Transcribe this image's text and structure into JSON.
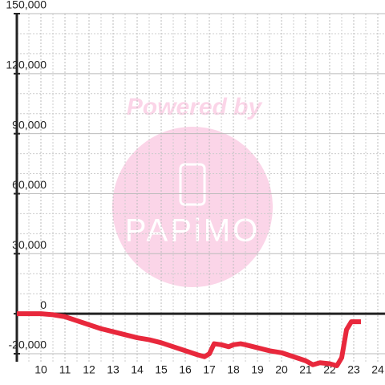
{
  "chart_data": {
    "type": "line",
    "watermark": {
      "line1": "Powered by",
      "line2": "PAPiMO"
    },
    "x": [
      9,
      9.5,
      10,
      10.5,
      11,
      11.5,
      12,
      12.5,
      13,
      13.5,
      14,
      14.5,
      15,
      15.5,
      16,
      16.5,
      16.8,
      17,
      17.2,
      17.5,
      17.8,
      18,
      18.3,
      18.5,
      19,
      19.5,
      20,
      20.5,
      21,
      21.3,
      21.6,
      22,
      22.3,
      22.5,
      22.7,
      22.9,
      23.3
    ],
    "series": [
      {
        "color": "#e8283c",
        "values": [
          0,
          0,
          0,
          -500,
          -1500,
          -3500,
          -5500,
          -7500,
          -9000,
          -10500,
          -12000,
          -13000,
          -14500,
          -16500,
          -18500,
          -20500,
          -21500,
          -20000,
          -15000,
          -15500,
          -16500,
          -15500,
          -15000,
          -15500,
          -17000,
          -18500,
          -19500,
          -21500,
          -23500,
          -25500,
          -24500,
          -25000,
          -26000,
          -22000,
          -8000,
          -4000,
          -4000
        ]
      }
    ],
    "xlim": [
      9,
      24.3
    ],
    "ylim": [
      -24000,
      150000
    ],
    "xticks": [
      10,
      11,
      12,
      13,
      14,
      15,
      16,
      17,
      18,
      19,
      20,
      21,
      22,
      23,
      24
    ],
    "yticks": [
      {
        "value": -20000,
        "label": "-20,000"
      },
      0,
      {
        "value": 30000,
        "label": "30,000"
      },
      {
        "value": 60000,
        "label": "60,000"
      },
      {
        "value": 90000,
        "label": "90,000"
      },
      {
        "value": 120000,
        "label": "120,000"
      },
      {
        "value": 150000,
        "label": "150,000"
      }
    ],
    "y_minor_gridlines": [
      10000,
      20000,
      40000,
      50000,
      70000,
      80000,
      100000,
      110000,
      130000,
      140000
    ],
    "x_minor_gridlines": [
      9.5,
      10.5,
      11.5,
      12.5,
      13.5,
      14.5,
      15.5,
      16.5,
      17.5,
      18.5,
      19.5,
      20.5,
      21.5,
      22.5,
      23.5
    ],
    "grid": true
  }
}
